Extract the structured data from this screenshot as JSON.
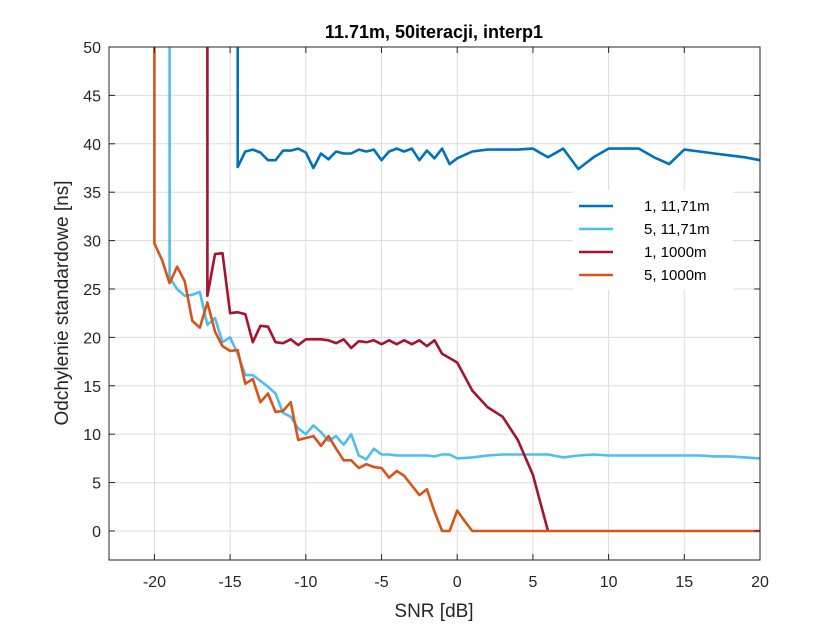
{
  "chart_data": {
    "type": "line",
    "title": "11.71m, 50iteracji, interp1",
    "xlabel": "SNR [dB]",
    "ylabel": "Odchylenie standardowe [ns]",
    "xlim": [
      -23,
      20
    ],
    "ylim": [
      -3,
      50
    ],
    "xticks": [
      -20,
      -15,
      -10,
      -5,
      0,
      5,
      10,
      15,
      20
    ],
    "yticks": [
      0,
      5,
      10,
      15,
      20,
      25,
      30,
      35,
      40,
      45,
      50
    ],
    "grid": true,
    "legend_location": "right",
    "series": [
      {
        "name": "1, 11,71m",
        "color": "#0072BD",
        "x": [
          -14.5,
          -14.5,
          -14,
          -13.5,
          -13,
          -12.5,
          -12,
          -11.5,
          -11,
          -10.5,
          -10,
          -9.5,
          -9,
          -8.5,
          -8,
          -7.5,
          -7,
          -6.5,
          -6,
          -5.5,
          -5,
          -4.5,
          -4,
          -3.5,
          -3,
          -2.5,
          -2,
          -1.5,
          -1,
          -0.5,
          0,
          1,
          2,
          3,
          4,
          5,
          6,
          7,
          8,
          9,
          10,
          11,
          12,
          13,
          14,
          15,
          16,
          17,
          18,
          19,
          20
        ],
        "y": [
          50,
          37.6,
          39.2,
          39.4,
          39.1,
          38.3,
          38.3,
          39.3,
          39.3,
          39.5,
          39.1,
          37.5,
          39.0,
          38.4,
          39.2,
          39.0,
          39.0,
          39.4,
          39.2,
          39.4,
          38.3,
          39.2,
          39.5,
          39.2,
          39.5,
          38.3,
          39.3,
          38.5,
          39.5,
          37.9,
          38.5,
          39.2,
          39.4,
          39.4,
          39.4,
          39.5,
          38.6,
          39.5,
          37.4,
          38.6,
          39.5,
          39.5,
          39.5,
          38.6,
          37.9,
          39.4,
          39.2,
          39.0,
          38.8,
          38.6,
          38.3
        ]
      },
      {
        "name": "5, 11,71m",
        "color": "#4DBEEE",
        "x": [
          -19,
          -19,
          -18.5,
          -18,
          -17.5,
          -17,
          -16.5,
          -16,
          -15.5,
          -15,
          -14.5,
          -14,
          -13.5,
          -13,
          -12.5,
          -12,
          -11.5,
          -11,
          -10.5,
          -10,
          -9.5,
          -9,
          -8.5,
          -8,
          -7.5,
          -7,
          -6.5,
          -6,
          -5.5,
          -5,
          -4.5,
          -4,
          -3.5,
          -3,
          -2.5,
          -2,
          -1.5,
          -1,
          -0.5,
          0,
          1,
          2,
          3,
          4,
          5,
          6,
          7,
          8,
          9,
          10,
          11,
          12,
          13,
          14,
          15,
          16,
          17,
          18,
          19,
          20
        ],
        "y": [
          50,
          26.2,
          25.0,
          24.3,
          24.4,
          24.7,
          21.3,
          22.0,
          19.5,
          20.0,
          18.3,
          16.1,
          16.1,
          15.5,
          14.9,
          14.2,
          12.2,
          11.8,
          10.6,
          10.0,
          10.9,
          10.2,
          9.3,
          9.8,
          8.9,
          10.0,
          7.8,
          7.4,
          8.5,
          7.9,
          7.9,
          7.8,
          7.8,
          7.8,
          7.8,
          7.8,
          7.7,
          7.9,
          7.9,
          7.5,
          7.6,
          7.8,
          7.9,
          7.9,
          7.9,
          7.9,
          7.6,
          7.8,
          7.9,
          7.8,
          7.8,
          7.8,
          7.8,
          7.8,
          7.8,
          7.8,
          7.7,
          7.7,
          7.6,
          7.5
        ]
      },
      {
        "name": "1, 1000m",
        "color": "#A2142F",
        "x": [
          -16.5,
          -16.5,
          -16,
          -15.5,
          -15,
          -14.5,
          -14,
          -13.5,
          -13,
          -12.5,
          -12,
          -11.5,
          -11,
          -10.5,
          -10,
          -9.5,
          -9,
          -8.5,
          -8,
          -7.5,
          -7,
          -6.5,
          -6,
          -5.5,
          -5,
          -4.5,
          -4,
          -3.5,
          -3,
          -2.5,
          -2,
          -1.5,
          -1,
          0,
          1,
          2,
          3,
          4,
          5,
          6
        ],
        "y": [
          50,
          24.3,
          28.6,
          28.7,
          22.5,
          22.6,
          22.4,
          19.5,
          21.2,
          21.1,
          19.5,
          19.4,
          19.8,
          19.2,
          19.8,
          19.8,
          19.8,
          19.7,
          19.4,
          19.8,
          18.9,
          19.6,
          19.5,
          19.7,
          19.3,
          19.7,
          19.3,
          19.7,
          19.3,
          19.7,
          19.1,
          19.7,
          18.3,
          17.4,
          14.5,
          12.8,
          11.8,
          9.4,
          5.8,
          0
        ]
      },
      {
        "name": "5, 1000m",
        "color": "#D95319",
        "x": [
          -20,
          -20,
          -19.5,
          -19,
          -18.5,
          -18,
          -17.5,
          -17,
          -16.5,
          -16,
          -15.5,
          -15,
          -14.5,
          -14,
          -13.5,
          -13,
          -12.5,
          -12,
          -11.5,
          -11,
          -10.5,
          -10,
          -9.5,
          -9,
          -8.5,
          -8,
          -7.5,
          -7,
          -6.5,
          -6,
          -5.5,
          -5,
          -4.5,
          -4,
          -3.5,
          -3,
          -2.5,
          -2,
          -1.5,
          -1,
          -0.5,
          0,
          0.5,
          1,
          2,
          3,
          4,
          5,
          6,
          7,
          8,
          9,
          10,
          11,
          12,
          13,
          14,
          15,
          16,
          17,
          18,
          19,
          20
        ],
        "y": [
          50,
          29.7,
          28.0,
          25.6,
          27.3,
          25.8,
          21.7,
          21.0,
          23.6,
          20.6,
          19.1,
          18.6,
          18.7,
          15.2,
          15.7,
          13.3,
          14.2,
          12.3,
          12.4,
          13.3,
          9.4,
          9.6,
          9.8,
          8.8,
          9.8,
          8.5,
          7.3,
          7.3,
          6.5,
          6.9,
          6.6,
          6.5,
          5.5,
          6.2,
          5.7,
          4.7,
          3.7,
          4.3,
          2.0,
          0,
          0,
          2.1,
          1.0,
          0,
          0,
          0,
          0,
          0,
          0,
          0,
          0,
          0,
          0,
          0,
          0,
          0,
          0,
          0,
          0,
          0,
          0,
          0,
          0
        ]
      }
    ]
  }
}
